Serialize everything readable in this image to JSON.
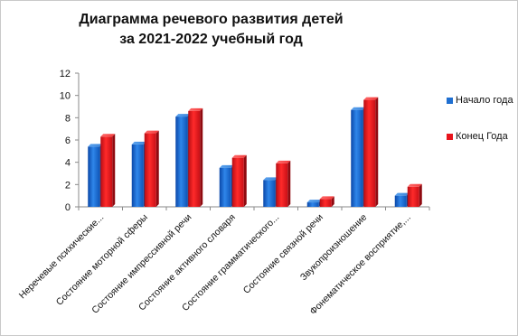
{
  "chart_data": {
    "type": "bar",
    "title_lines": [
      "Диаграмма речевого развития детей",
      "за 2021-2022 учебный год"
    ],
    "categories": [
      "Неречевые психические...",
      "Состояние моторной сферы",
      "Состояние импрессивной речи",
      "Состояние активного словаря",
      "Состояние грамматического...",
      "Состояние связной речи",
      "Звукопроизношение",
      "Фонематическое восприятие,..."
    ],
    "series": [
      {
        "name": "Начало года",
        "color": "#1f6fd1",
        "values": [
          5.4,
          5.6,
          8.1,
          3.5,
          2.4,
          0.4,
          8.7,
          1.0
        ]
      },
      {
        "name": "Конец Года",
        "color": "#e8141c",
        "values": [
          6.3,
          6.6,
          8.6,
          4.4,
          3.9,
          0.7,
          9.6,
          1.8
        ]
      }
    ],
    "ylim": [
      0,
      12
    ],
    "yticks": [
      "0",
      "2",
      "4",
      "6",
      "8",
      "10",
      "12"
    ],
    "grid": false,
    "legend_position": "right"
  }
}
